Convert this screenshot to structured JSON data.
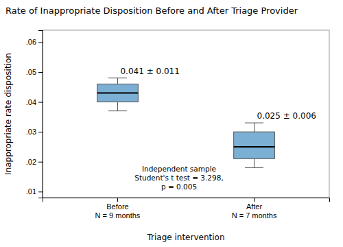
{
  "chart_data": {
    "type": "box",
    "title": "Rate of Inappropriate Disposition Before and After Triage Provider",
    "y_label": "Inappropriate rate disposition",
    "x_label": "Triage intervention",
    "categories": [
      "Before\nN = 9 months",
      "After\nN = 7 months"
    ],
    "boxes": [
      {
        "median": 0.043,
        "q1": 0.04,
        "q3": 0.046,
        "whislo": 0.037,
        "whishi": 0.048,
        "label": "0.041 ± 0.011"
      },
      {
        "median": 0.025,
        "q1": 0.021,
        "q3": 0.03,
        "whislo": 0.018,
        "whishi": 0.033,
        "label": "0.025 ± 0.006"
      }
    ],
    "color": "#7bafd4",
    "annotations": [
      "Independent sample\nStudent's t test = 3.298,\np = 0.005"
    ],
    "ylim": [
      0.008,
      0.064
    ],
    "yticks": [
      {
        "value": 0.01,
        "label": ".01"
      },
      {
        "value": 0.02,
        "label": ".02"
      },
      {
        "value": 0.03,
        "label": ".03"
      },
      {
        "value": 0.04,
        "label": ".04"
      },
      {
        "value": 0.05,
        "label": ".05"
      },
      {
        "value": 0.06,
        "label": ".06"
      }
    ],
    "grid": false
  }
}
